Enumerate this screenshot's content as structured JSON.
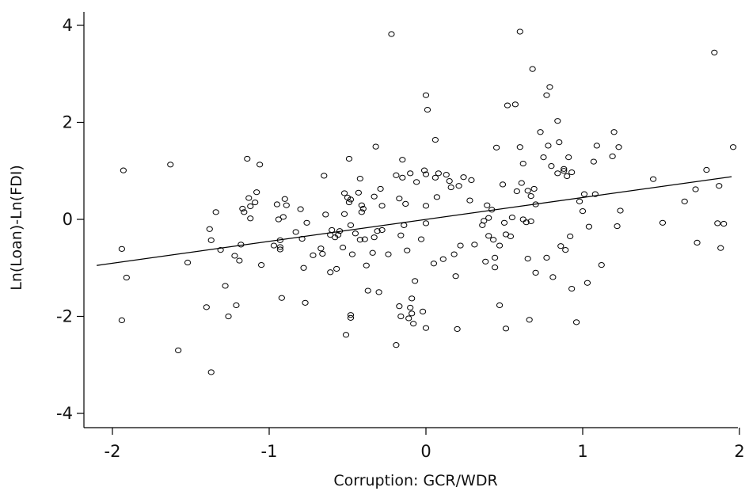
{
  "chart_data": {
    "type": "scatter",
    "xlabel": "Corruption: GCR/WDR",
    "ylabel": "Ln(Loan)-Ln(FDI)",
    "xlim": [
      -2.1,
      2.0
    ],
    "ylim": [
      -4.25,
      4.3
    ],
    "xticks": [
      -2,
      -1,
      0,
      1,
      2
    ],
    "yticks": [
      -4,
      -2,
      0,
      2,
      4
    ],
    "grid": false,
    "legend": "none",
    "fit_line": {
      "x": [
        -2.1,
        1.95
      ],
      "y": [
        -0.95,
        0.88
      ]
    },
    "points": [
      [
        -1.93,
        1.01
      ],
      [
        -1.94,
        -0.61
      ],
      [
        -1.94,
        -2.08
      ],
      [
        -1.91,
        -1.2
      ],
      [
        -1.63,
        1.13
      ],
      [
        -1.58,
        -2.7
      ],
      [
        -1.52,
        -0.89
      ],
      [
        -1.4,
        -1.81
      ],
      [
        -1.38,
        -0.2
      ],
      [
        -1.37,
        -0.43
      ],
      [
        -1.37,
        -3.15
      ],
      [
        -1.34,
        0.15
      ],
      [
        -1.31,
        -0.63
      ],
      [
        -1.28,
        -1.37
      ],
      [
        -1.26,
        -2.0
      ],
      [
        -1.22,
        -0.75
      ],
      [
        -1.21,
        -1.77
      ],
      [
        -1.19,
        -0.85
      ],
      [
        -1.18,
        -0.52
      ],
      [
        -1.17,
        0.22
      ],
      [
        -1.16,
        0.15
      ],
      [
        -1.14,
        1.25
      ],
      [
        -1.13,
        0.44
      ],
      [
        -1.12,
        0.02
      ],
      [
        -1.12,
        0.27
      ],
      [
        -1.09,
        0.35
      ],
      [
        -1.08,
        0.56
      ],
      [
        -1.06,
        1.13
      ],
      [
        -1.05,
        -0.94
      ],
      [
        -0.97,
        -0.54
      ],
      [
        -0.95,
        0.31
      ],
      [
        -0.94,
        0.0
      ],
      [
        -0.93,
        -0.57
      ],
      [
        -0.93,
        -0.62
      ],
      [
        -0.93,
        -0.43
      ],
      [
        -0.92,
        -1.62
      ],
      [
        -0.91,
        0.05
      ],
      [
        -0.9,
        0.42
      ],
      [
        -0.89,
        0.29
      ],
      [
        -0.83,
        -0.26
      ],
      [
        -0.8,
        0.21
      ],
      [
        -0.79,
        -0.4
      ],
      [
        -0.78,
        -1.0
      ],
      [
        -0.77,
        -1.72
      ],
      [
        -0.76,
        -0.07
      ],
      [
        -0.72,
        -0.74
      ],
      [
        -0.67,
        -0.6
      ],
      [
        -0.66,
        -0.71
      ],
      [
        -0.65,
        0.9
      ],
      [
        -0.64,
        0.1
      ],
      [
        -0.61,
        -0.32
      ],
      [
        -0.61,
        -1.09
      ],
      [
        -0.6,
        -0.22
      ],
      [
        -0.58,
        -0.37
      ],
      [
        -0.57,
        -1.02
      ],
      [
        -0.56,
        -0.32
      ],
      [
        -0.55,
        -0.24
      ],
      [
        -0.53,
        -0.58
      ],
      [
        -0.52,
        0.54
      ],
      [
        -0.52,
        0.11
      ],
      [
        -0.51,
        -2.38
      ],
      [
        -0.5,
        0.45
      ],
      [
        -0.49,
        0.35
      ],
      [
        -0.49,
        1.25
      ],
      [
        -0.48,
        0.41
      ],
      [
        -0.48,
        -0.12
      ],
      [
        -0.48,
        -1.97
      ],
      [
        -0.48,
        -2.03
      ],
      [
        -0.47,
        -0.72
      ],
      [
        -0.45,
        -0.29
      ],
      [
        -0.43,
        0.55
      ],
      [
        -0.42,
        0.84
      ],
      [
        -0.42,
        -0.42
      ],
      [
        -0.41,
        0.29
      ],
      [
        -0.41,
        0.15
      ],
      [
        -0.4,
        0.22
      ],
      [
        -0.39,
        -0.41
      ],
      [
        -0.38,
        -0.95
      ],
      [
        -0.37,
        -1.47
      ],
      [
        -0.34,
        -0.69
      ],
      [
        -0.33,
        0.47
      ],
      [
        -0.33,
        -0.37
      ],
      [
        -0.32,
        1.5
      ],
      [
        -0.31,
        -0.24
      ],
      [
        -0.3,
        -1.5
      ],
      [
        -0.29,
        0.63
      ],
      [
        -0.28,
        0.28
      ],
      [
        -0.28,
        -0.22
      ],
      [
        -0.24,
        -0.72
      ],
      [
        -0.22,
        3.82
      ],
      [
        -0.19,
        -2.59
      ],
      [
        -0.19,
        0.91
      ],
      [
        -0.17,
        -1.79
      ],
      [
        -0.17,
        0.43
      ],
      [
        -0.16,
        -0.33
      ],
      [
        -0.16,
        -2.0
      ],
      [
        -0.15,
        1.23
      ],
      [
        -0.15,
        0.86
      ],
      [
        -0.14,
        -0.12
      ],
      [
        -0.13,
        0.32
      ],
      [
        -0.12,
        -0.64
      ],
      [
        -0.11,
        -2.04
      ],
      [
        -0.1,
        0.95
      ],
      [
        -0.1,
        -1.82
      ],
      [
        -0.09,
        -1.63
      ],
      [
        -0.09,
        -1.94
      ],
      [
        -0.08,
        -2.15
      ],
      [
        -0.07,
        -1.27
      ],
      [
        -0.06,
        0.77
      ],
      [
        -0.03,
        -0.41
      ],
      [
        -0.02,
        -1.9
      ],
      [
        -0.01,
        1.01
      ],
      [
        0.0,
        0.93
      ],
      [
        0.0,
        0.28
      ],
      [
        0.0,
        -0.08
      ],
      [
        0.0,
        -2.24
      ],
      [
        0.0,
        2.56
      ],
      [
        0.01,
        2.26
      ],
      [
        0.05,
        -0.91
      ],
      [
        0.06,
        0.86
      ],
      [
        0.06,
        1.64
      ],
      [
        0.07,
        0.46
      ],
      [
        0.08,
        0.95
      ],
      [
        0.11,
        -0.82
      ],
      [
        0.13,
        0.92
      ],
      [
        0.15,
        0.79
      ],
      [
        0.16,
        0.66
      ],
      [
        0.18,
        -0.72
      ],
      [
        0.19,
        -1.17
      ],
      [
        0.2,
        -2.26
      ],
      [
        0.21,
        0.69
      ],
      [
        0.22,
        -0.54
      ],
      [
        0.24,
        0.87
      ],
      [
        0.28,
        0.39
      ],
      [
        0.29,
        0.81
      ],
      [
        0.31,
        -0.52
      ],
      [
        0.36,
        -0.12
      ],
      [
        0.37,
        -0.03
      ],
      [
        0.38,
        -0.87
      ],
      [
        0.39,
        0.29
      ],
      [
        0.4,
        0.03
      ],
      [
        0.4,
        -0.34
      ],
      [
        0.42,
        0.2
      ],
      [
        0.43,
        -0.42
      ],
      [
        0.44,
        -0.79
      ],
      [
        0.44,
        -0.99
      ],
      [
        0.45,
        1.48
      ],
      [
        0.47,
        -0.54
      ],
      [
        0.47,
        -1.77
      ],
      [
        0.49,
        0.72
      ],
      [
        0.5,
        -0.07
      ],
      [
        0.51,
        -0.31
      ],
      [
        0.51,
        -2.25
      ],
      [
        0.52,
        2.35
      ],
      [
        0.54,
        -0.35
      ],
      [
        0.55,
        0.04
      ],
      [
        0.57,
        2.37
      ],
      [
        0.58,
        0.58
      ],
      [
        0.6,
        3.87
      ],
      [
        0.6,
        1.49
      ],
      [
        0.61,
        0.75
      ],
      [
        0.62,
        0.0
      ],
      [
        0.62,
        1.15
      ],
      [
        0.64,
        -0.06
      ],
      [
        0.65,
        0.59
      ],
      [
        0.65,
        -0.81
      ],
      [
        0.66,
        -2.07
      ],
      [
        0.67,
        0.48
      ],
      [
        0.67,
        -0.04
      ],
      [
        0.68,
        3.1
      ],
      [
        0.69,
        0.63
      ],
      [
        0.7,
        0.31
      ],
      [
        0.7,
        -1.1
      ],
      [
        0.73,
        1.8
      ],
      [
        0.75,
        1.28
      ],
      [
        0.77,
        2.56
      ],
      [
        0.77,
        -0.79
      ],
      [
        0.78,
        1.52
      ],
      [
        0.79,
        2.73
      ],
      [
        0.8,
        1.1
      ],
      [
        0.81,
        -1.19
      ],
      [
        0.84,
        0.95
      ],
      [
        0.84,
        2.03
      ],
      [
        0.85,
        1.59
      ],
      [
        0.86,
        -0.55
      ],
      [
        0.88,
        1.04
      ],
      [
        0.88,
        1.0
      ],
      [
        0.89,
        -0.63
      ],
      [
        0.9,
        0.89
      ],
      [
        0.91,
        1.28
      ],
      [
        0.92,
        -0.35
      ],
      [
        0.93,
        0.97
      ],
      [
        0.93,
        -1.43
      ],
      [
        0.96,
        -2.12
      ],
      [
        0.98,
        0.37
      ],
      [
        1.0,
        0.17
      ],
      [
        1.01,
        0.52
      ],
      [
        1.03,
        -1.31
      ],
      [
        1.04,
        -0.15
      ],
      [
        1.07,
        1.19
      ],
      [
        1.08,
        0.52
      ],
      [
        1.09,
        1.52
      ],
      [
        1.12,
        -0.94
      ],
      [
        1.19,
        1.3
      ],
      [
        1.2,
        1.8
      ],
      [
        1.22,
        -0.14
      ],
      [
        1.23,
        1.49
      ],
      [
        1.24,
        0.18
      ],
      [
        1.45,
        0.83
      ],
      [
        1.51,
        -0.07
      ],
      [
        1.65,
        0.37
      ],
      [
        1.72,
        0.62
      ],
      [
        1.73,
        -0.48
      ],
      [
        1.79,
        1.02
      ],
      [
        1.84,
        3.44
      ],
      [
        1.86,
        -0.08
      ],
      [
        1.87,
        0.69
      ],
      [
        1.88,
        -0.59
      ],
      [
        1.9,
        -0.09
      ],
      [
        1.96,
        1.49
      ]
    ]
  }
}
